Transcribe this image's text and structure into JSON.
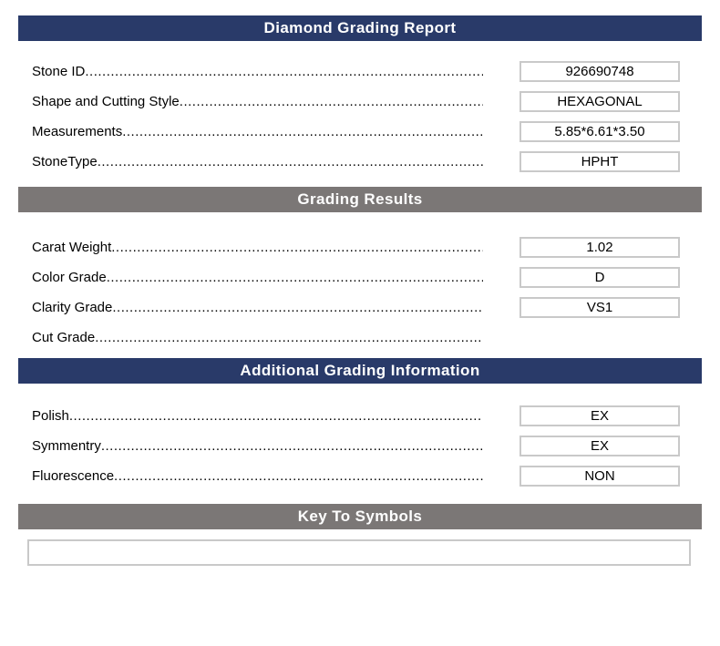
{
  "report": {
    "colors": {
      "navy": "#293a69",
      "gray": "#7b7776",
      "box_border": "#c9c9c9"
    },
    "sections": [
      {
        "title": "Diamond Grading Report",
        "style": "navy",
        "rows": [
          {
            "label": "Stone ID",
            "value": "926690748"
          },
          {
            "label": "Shape and Cutting Style",
            "value": "HEXAGONAL"
          },
          {
            "label": "Measurements",
            "value": "5.85*6.61*3.50"
          },
          {
            "label": "StoneType",
            "value": "HPHT"
          }
        ]
      },
      {
        "title": "Grading Results",
        "style": "gray",
        "rows": [
          {
            "label": "Carat Weight",
            "value": "1.02"
          },
          {
            "label": "Color Grade",
            "value": "D"
          },
          {
            "label": "Clarity Grade",
            "value": "VS1"
          },
          {
            "label": "Cut Grade",
            "value": ""
          }
        ]
      },
      {
        "title": "Additional Grading Information",
        "style": "navy",
        "rows": [
          {
            "label": "Polish",
            "value": "EX"
          },
          {
            "label": "Symmentry",
            "value": "EX"
          },
          {
            "label": "Fluorescence",
            "value": "NON"
          }
        ]
      },
      {
        "title": "Key To Symbols",
        "style": "gray",
        "rows": []
      }
    ],
    "key_to_symbols_value": ""
  }
}
